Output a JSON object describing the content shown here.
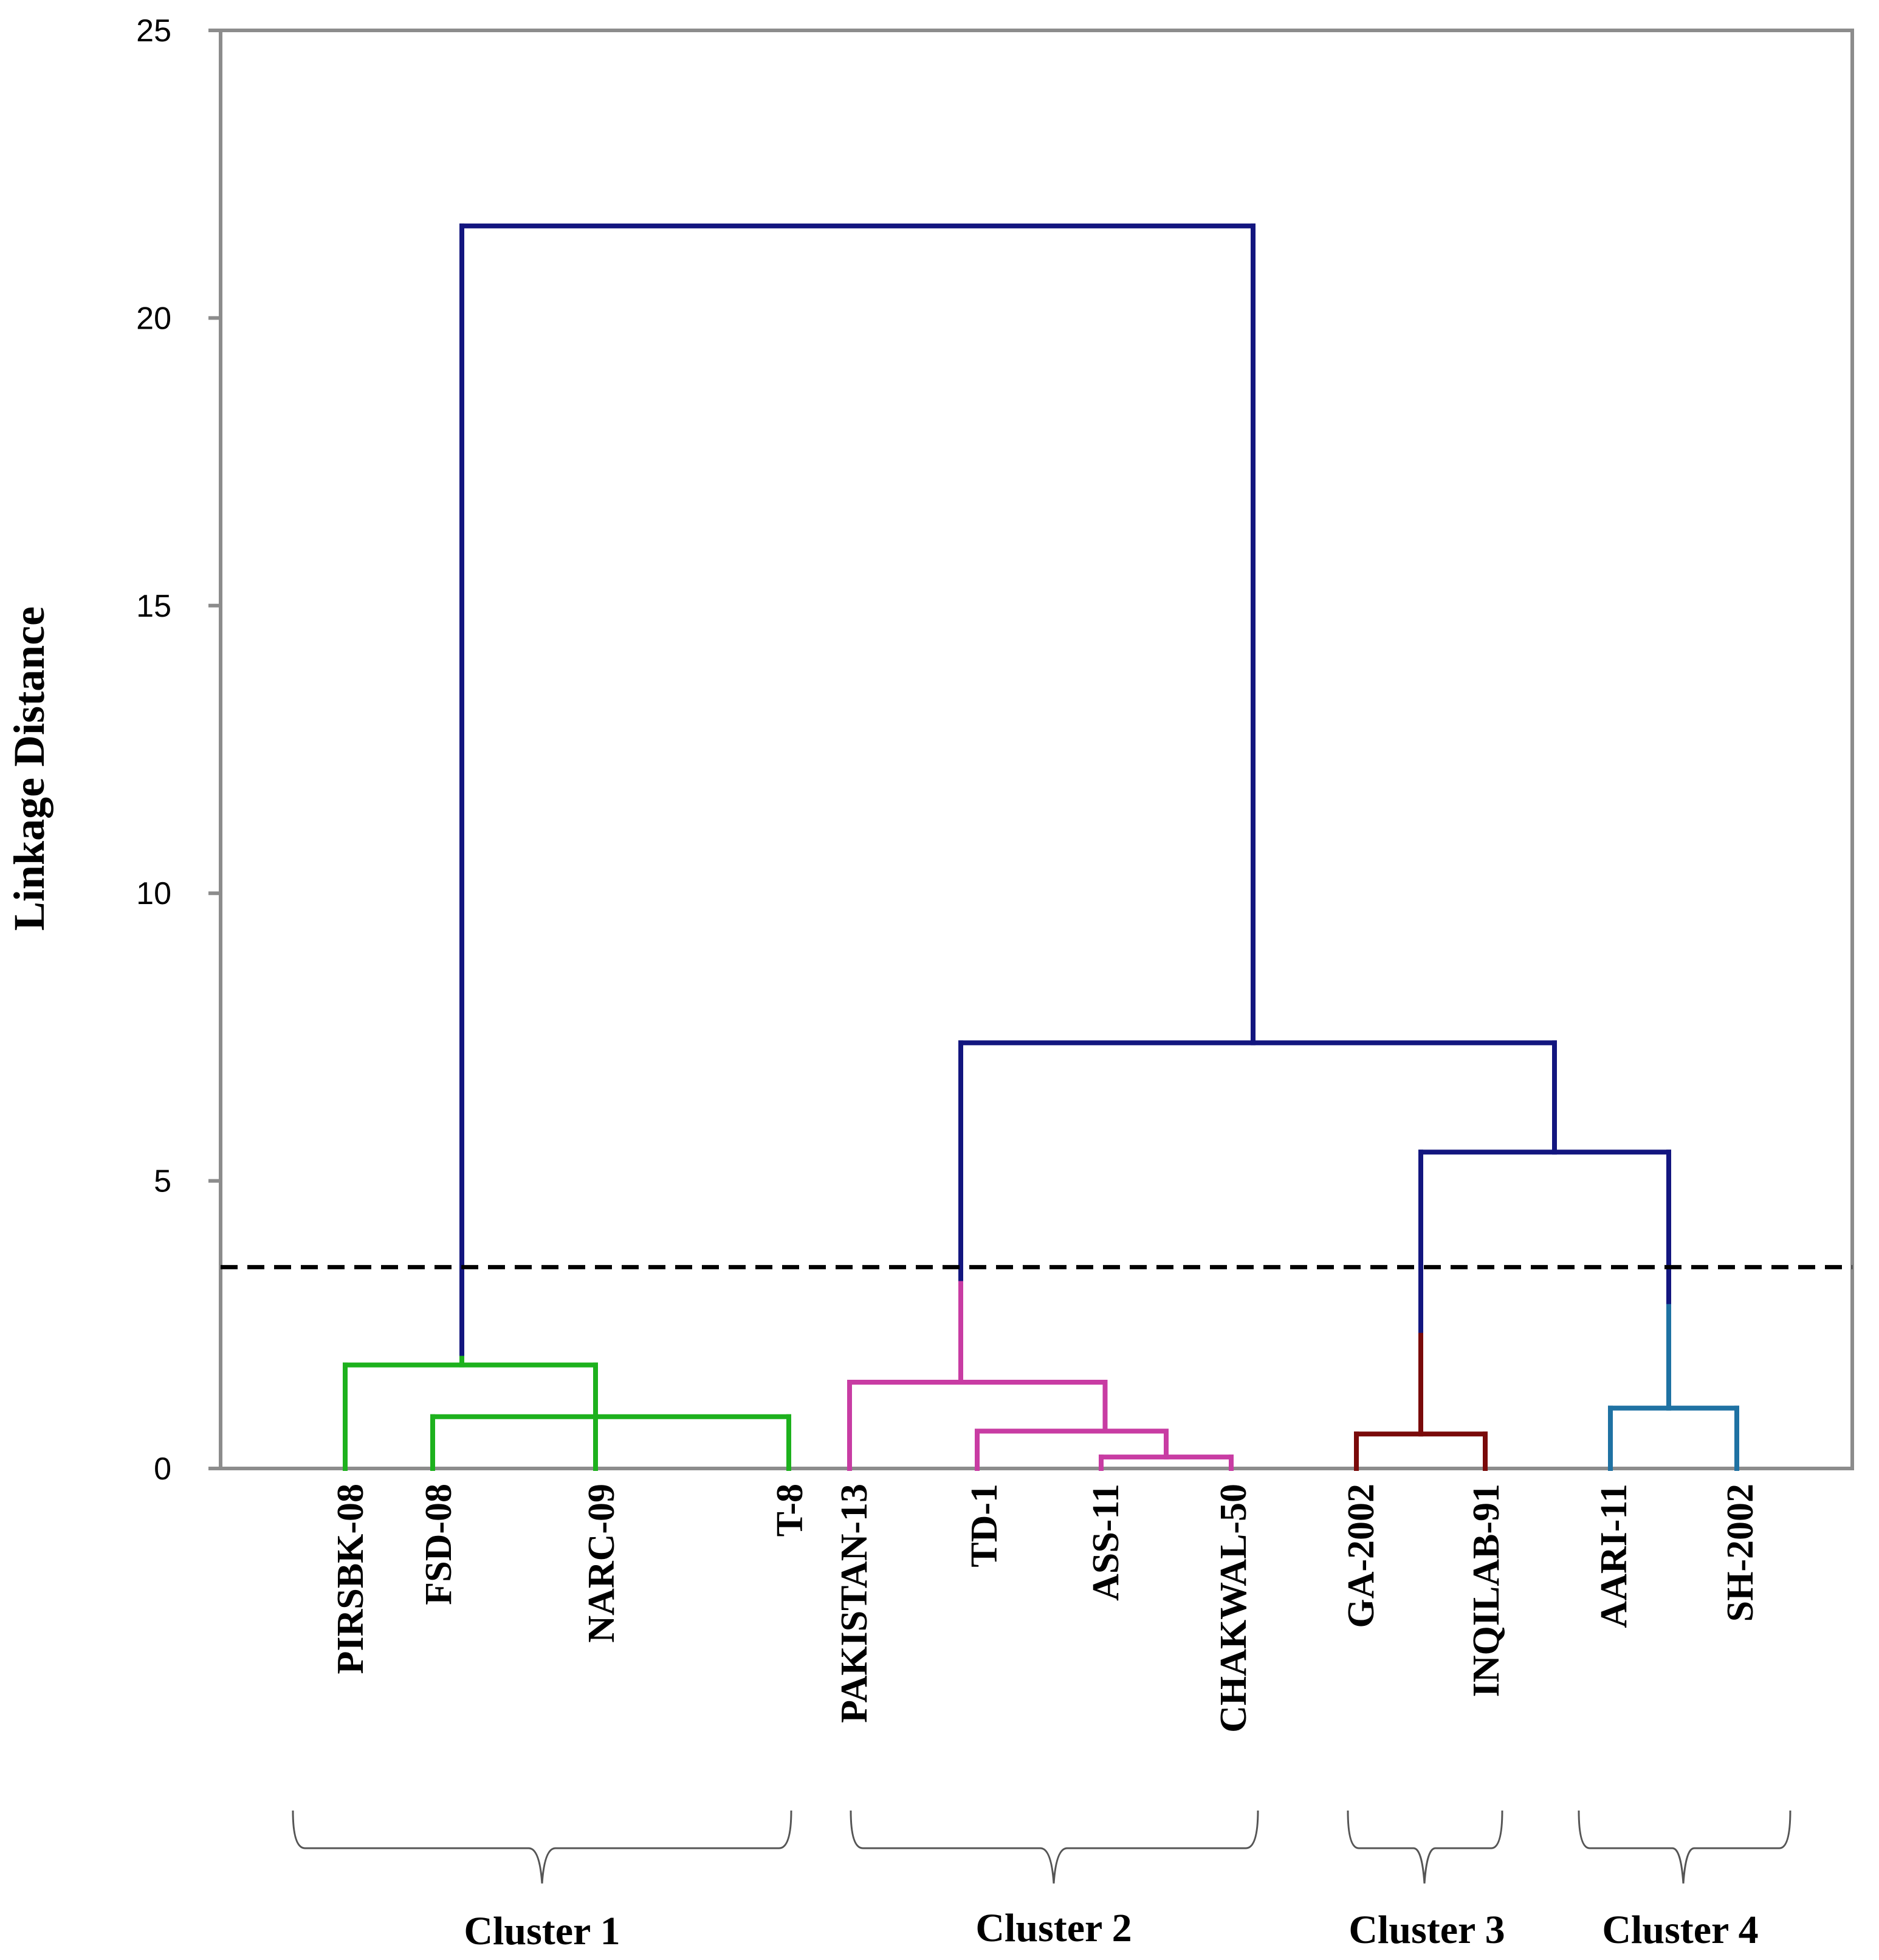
{
  "chart_data": {
    "type": "dendrogram",
    "title": "",
    "xlabel": "",
    "ylabel": "Linkage Distance",
    "ylim": [
      0,
      25
    ],
    "yticks": [
      0,
      5,
      10,
      15,
      20,
      25
    ],
    "ytick_labels": [
      "0",
      "5",
      "10",
      "15",
      "20",
      "25"
    ],
    "cutoff_line": 3.5,
    "leaves": [
      "PIRSBK-08",
      "FSD-08",
      "NARC-09",
      "T-8",
      "PAKISTAN-13",
      "TD-1",
      "ASS-11",
      "CHAKWAL-50",
      "GA-2002",
      "INQILAB-91",
      "AARI-11",
      "SH-2002"
    ],
    "merges": [
      {
        "left": "ASS-11",
        "right": "CHAKWAL-50",
        "height": 0.2
      },
      {
        "left": "GA-2002",
        "right": "INQILAB-91",
        "height": 0.6
      },
      {
        "left": "TD-1",
        "right": "ASS-11 + CHAKWAL-50",
        "height": 0.65
      },
      {
        "left": "FSD-08",
        "right": "T-8",
        "height": 0.9
      },
      {
        "left": "AARI-11",
        "right": "SH-2002",
        "height": 1.05
      },
      {
        "left": "PAKISTAN-13",
        "right": "TD-1 + ASS-11 + CHAKWAL-50",
        "height": 1.5
      },
      {
        "left": "PIRSBK-08",
        "right": "NARC-09",
        "height": 1.8
      },
      {
        "left": "Cluster 3",
        "right": "Cluster 4",
        "height": 5.5
      },
      {
        "left": "Cluster 2",
        "right": "Cluster 3 + Cluster 4",
        "height": 7.4
      },
      {
        "left": "Cluster 1",
        "right": "Cluster 2 + Cluster 3 + Cluster 4",
        "height": 21.6
      }
    ],
    "clusters": [
      {
        "label": "Cluster 1",
        "members": [
          "PIRSBK-08",
          "FSD-08",
          "NARC-09",
          "T-8"
        ],
        "color": "#1db11d"
      },
      {
        "label": "Cluster 2",
        "members": [
          "PAKISTAN-13",
          "TD-1",
          "ASS-11",
          "CHAKWAL-50"
        ],
        "color": "#c83ca3"
      },
      {
        "label": "Cluster 3",
        "members": [
          "GA-2002",
          "INQILAB-91"
        ],
        "color": "#7a0a0a"
      },
      {
        "label": "Cluster 4",
        "members": [
          "AARI-11",
          "SH-2002"
        ],
        "color": "#1f72a3"
      }
    ],
    "root_color": "#13167f"
  }
}
